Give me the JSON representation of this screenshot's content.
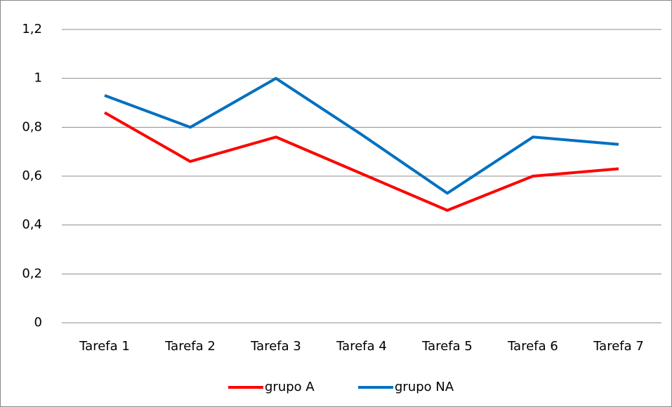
{
  "chart_data": {
    "type": "line",
    "categories": [
      "Tarefa 1",
      "Tarefa 2",
      "Tarefa 3",
      "Tarefa 4",
      "Tarefa 5",
      "Tarefa 6",
      "Tarefa 7"
    ],
    "series": [
      {
        "name": "grupo A",
        "color": "#ff0000",
        "values": [
          0.86,
          0.66,
          0.76,
          0.61,
          0.46,
          0.6,
          0.63
        ]
      },
      {
        "name": "grupo NA",
        "color": "#0070c0",
        "values": [
          0.93,
          0.8,
          1,
          0.77,
          0.53,
          0.76,
          0.73
        ]
      }
    ],
    "ylim": [
      0,
      1.2
    ],
    "yticks": [
      0,
      {
        "value": 0.2,
        "label": "0,2"
      },
      {
        "value": 0.4,
        "label": "0,4"
      },
      {
        "value": 0.6,
        "label": "0,6"
      },
      {
        "value": 0.8,
        "label": "0,8"
      },
      1,
      {
        "value": 1.2,
        "label": "1,2"
      }
    ],
    "grid": true,
    "legend": "bottom"
  }
}
